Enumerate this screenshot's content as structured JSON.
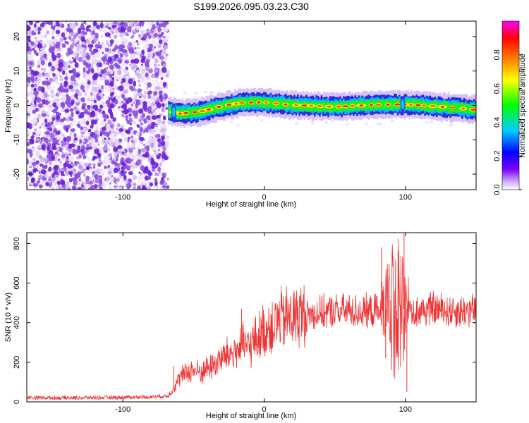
{
  "title": "S199.2026.095.03.23.C30",
  "chart_data": [
    {
      "type": "heatmap",
      "name": "spectrogram",
      "xlabel": "Height of straight line (km)",
      "ylabel": "Frequency (Hz)",
      "xlim": [
        -168,
        150
      ],
      "ylim": [
        -24.5,
        24.5
      ],
      "xticks": [
        "-100",
        "0",
        "100"
      ],
      "xtick_values": [
        -100,
        0,
        100
      ],
      "yticks": [
        "20",
        "10",
        "0",
        "-10",
        "-20"
      ],
      "ytick_values": [
        20,
        10,
        0,
        -10,
        -20
      ],
      "noise_region_x": [
        -168,
        -68
      ],
      "signal_track": {
        "x_start": -68,
        "x_end": 150,
        "freq_points": [
          [
            -68,
            -1.5
          ],
          [
            -60,
            -2.4
          ],
          [
            -45,
            -1.8
          ],
          [
            -30,
            -0.2
          ],
          [
            -15,
            0.8
          ],
          [
            0,
            0.9
          ],
          [
            20,
            0.1
          ],
          [
            50,
            -0.4
          ],
          [
            80,
            0.2
          ],
          [
            100,
            0.3
          ],
          [
            130,
            -0.5
          ],
          [
            150,
            -1.3
          ]
        ],
        "width_hz": 2.5
      },
      "colorbar": {
        "label": "Normalized spectral amplitude",
        "ticks": [
          "0.0",
          "0.2",
          "0.4",
          "0.6",
          "0.8"
        ],
        "tick_values": [
          0,
          0.2,
          0.4,
          0.6,
          0.8
        ],
        "range": [
          0,
          1
        ],
        "colors": [
          "#ffffff",
          "#7f00ff",
          "#0000ff",
          "#00ffff",
          "#00ff00",
          "#ffff00",
          "#ff0000",
          "#ff00ff"
        ]
      }
    },
    {
      "type": "line",
      "name": "snr",
      "xlabel": "Height of straight line (km)",
      "ylabel": "SNR (10 * v/v)",
      "xlim": [
        -168,
        150
      ],
      "ylim": [
        0,
        855
      ],
      "xticks": [
        "-100",
        "0",
        "100"
      ],
      "xtick_values": [
        -100,
        0,
        100
      ],
      "yticks": [
        "0",
        "200",
        "400",
        "600",
        "800"
      ],
      "ytick_values": [
        0,
        200,
        400,
        600,
        800
      ],
      "color": "#ee3333",
      "series": [
        {
          "name": "SNR",
          "x": [
            -168,
            -140,
            -110,
            -80,
            -68,
            -64,
            -60,
            -55,
            -50,
            -45,
            -40,
            -35,
            -30,
            -25,
            -20,
            -16,
            -12,
            -8,
            -4,
            0,
            5,
            10,
            20,
            30,
            40,
            50,
            60,
            70,
            80,
            84,
            86,
            88,
            90,
            95,
            98,
            100,
            102,
            105,
            110,
            120,
            130,
            140,
            150
          ],
          "y": [
            22,
            20,
            22,
            25,
            30,
            70,
            120,
            150,
            160,
            150,
            170,
            190,
            220,
            240,
            250,
            290,
            270,
            300,
            330,
            360,
            380,
            410,
            430,
            440,
            450,
            460,
            460,
            455,
            460,
            470,
            470,
            420,
            450,
            460,
            480,
            460,
            480,
            450,
            460,
            470,
            460,
            460,
            465
          ]
        }
      ],
      "spikes": [
        {
          "x": -64,
          "y": 180
        },
        {
          "x": -44,
          "y": 90
        },
        {
          "x": -16,
          "y": 470
        },
        {
          "x": 83,
          "y": 780
        },
        {
          "x": 86,
          "y": 220
        },
        {
          "x": 99,
          "y": 850
        },
        {
          "x": 101,
          "y": 50
        }
      ]
    }
  ]
}
